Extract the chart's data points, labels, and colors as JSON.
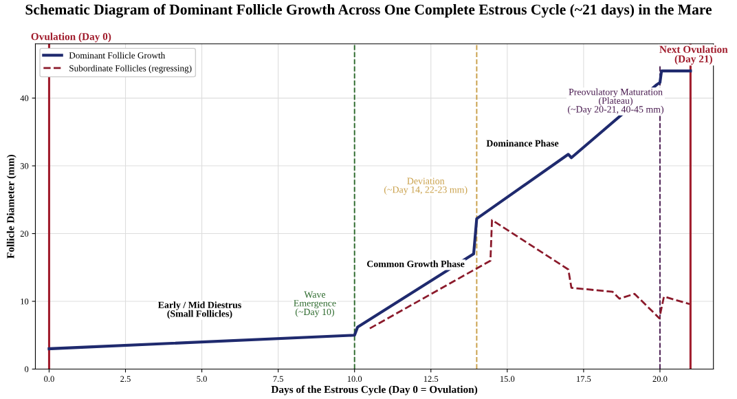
{
  "chart_data": {
    "type": "line",
    "title": "Schematic Diagram of Dominant Follicle Growth Across One Complete Estrous Cycle (~21 days) in the Mare",
    "xlabel": "Days of the Estrous Cycle (Day 0 = Ovulation)",
    "ylabel": "Follicle Diameter (mm)",
    "xlim": [
      -0.45,
      21.75
    ],
    "ylim": [
      0,
      48
    ],
    "xticks": [
      {
        "value": 0,
        "label": "0.0"
      },
      2.5,
      {
        "value": 5,
        "label": "5.0"
      },
      7.5,
      {
        "value": 10,
        "label": "10.0"
      },
      12.5,
      {
        "value": 15,
        "label": "15.0"
      },
      17.5,
      {
        "value": 20,
        "label": "20.0"
      }
    ],
    "yticks": [
      0,
      10,
      20,
      30,
      40
    ],
    "grid": true,
    "legend": "top left",
    "series": [
      {
        "name": "Dominant Follicle Growth",
        "color": "#1f2a6e",
        "line_style": "solid",
        "x": [
          0,
          10,
          10.1,
          13.9,
          14.0,
          17.0,
          17.1,
          19.9,
          20.0,
          20.05,
          21.0
        ],
        "values": [
          3,
          5,
          6.2,
          17,
          22.2,
          31.7,
          31.2,
          42,
          42.3,
          44,
          44
        ]
      },
      {
        "name": "Subordinate Follicles (regressing)",
        "color": "#8b1a2b",
        "line_style": "dashed",
        "x": [
          10.5,
          14.45,
          14.5,
          17.0,
          17.1,
          18.45,
          18.67,
          19.17,
          19.98,
          20.13,
          20.97
        ],
        "values": [
          6,
          16,
          22,
          14.7,
          12,
          11.4,
          10.4,
          11.1,
          7.5,
          10.7,
          9.6
        ]
      }
    ],
    "ref_lines": [
      {
        "axis": "x",
        "value": 0,
        "label": "Ovulation (Day 0)",
        "color": "#a01c2c",
        "line_style": "solid"
      },
      {
        "axis": "x",
        "value": 10,
        "label": "Wave\nEmergence\n(~Day 10)",
        "color": "#2e6b2e",
        "line_style": "dashed"
      },
      {
        "axis": "x",
        "value": 14,
        "label": "Deviation\n(~Day 14, 22-23 mm)",
        "color": "#c9a04a",
        "line_style": "dashed"
      },
      {
        "axis": "x",
        "value": 20,
        "label": "Preovulatory Maturation\n(Plateau)\n(~Day 20-21, 40-45 mm)",
        "color": "#4b1d52",
        "line_style": "dashed"
      },
      {
        "axis": "x",
        "value": 21,
        "label": "Next Ovulation\n(Day 21)",
        "color": "#a01c2c",
        "line_style": "solid"
      }
    ],
    "annotations": [
      "Early / Mid Diestrus\n(Small Follicles)",
      "Common Growth Phase",
      "Dominance Phase"
    ]
  }
}
